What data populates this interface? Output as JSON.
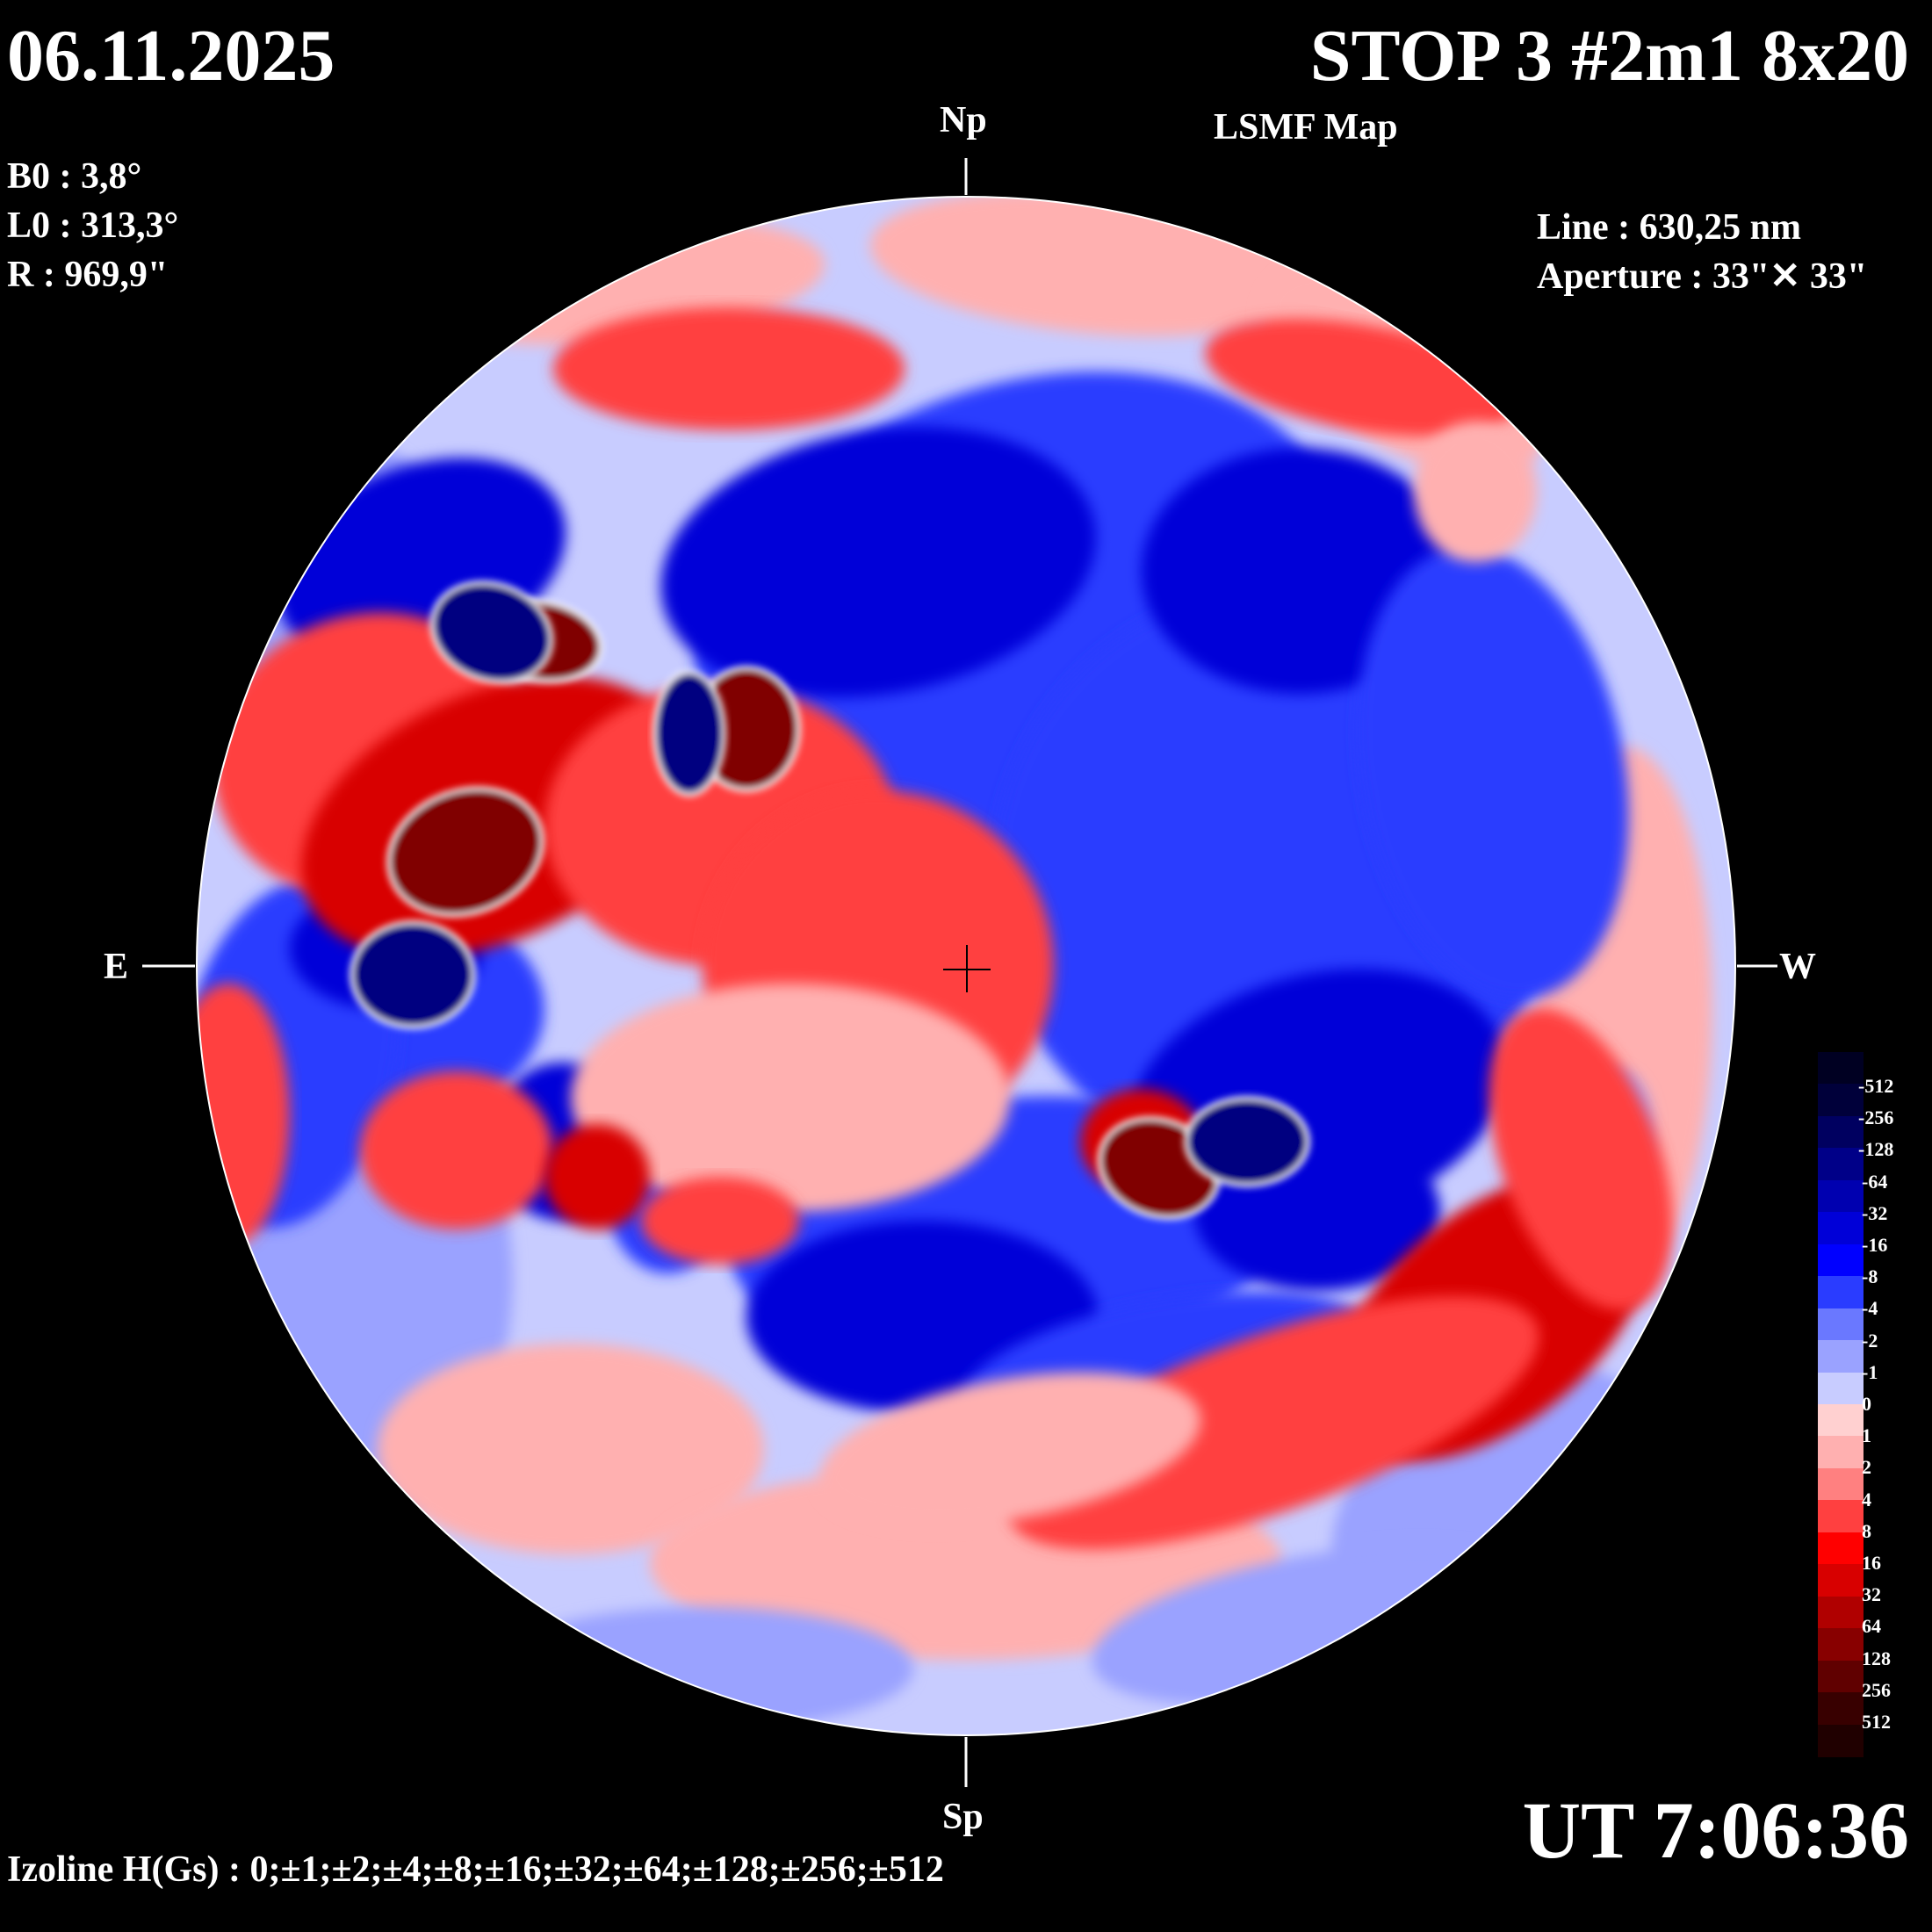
{
  "header": {
    "date": "06.11.2025",
    "title": "STOP 3 #2m1 8x20",
    "subtitle": "LSMF  Map"
  },
  "params": {
    "b0": "B0 : 3,8°",
    "l0": "L0 : 313,3°",
    "r": "R  : 969,9\""
  },
  "instrument": {
    "line": "Line :  630,25 nm",
    "aperture": "Aperture : 33\"✕ 33\""
  },
  "time": "UT 7:06:36",
  "izoline": "Izoline H(Gs) : 0;±1;±2;±4;±8;±16;±32;±64;±128;±256;±512",
  "compass": {
    "north": "Np",
    "south": "Sp",
    "east": "E",
    "west": "W"
  },
  "colorbar": {
    "labels": [
      "-512",
      "-256",
      "-128",
      "-64",
      "-32",
      "-16",
      "-8",
      "-4",
      "-2",
      "-1",
      "0",
      "1",
      "2",
      "4",
      "8",
      "16",
      "32",
      "64",
      "128",
      "256",
      "512"
    ],
    "colors": [
      "#000022",
      "#00003a",
      "#000060",
      "#000088",
      "#0000b0",
      "#0000d8",
      "#0000ff",
      "#2a3cff",
      "#6a78ff",
      "#9aa2ff",
      "#c8ccff",
      "#ffd0d0",
      "#ffb0b0",
      "#ff8080",
      "#ff4040",
      "#ff0000",
      "#d80000",
      "#b00000",
      "#880000",
      "#600000",
      "#380000",
      "#200000"
    ]
  },
  "map_palette": {
    "background": "#c8ccff",
    "positive_light": "#ffb0b0",
    "positive": "#ff4040",
    "positive_strong": "#d80000",
    "positive_dark": "#800000",
    "negative_light": "#9aa2ff",
    "negative": "#2a3cff",
    "negative_strong": "#0000d8",
    "negative_dark": "#000080",
    "contour": "#ffffff"
  }
}
